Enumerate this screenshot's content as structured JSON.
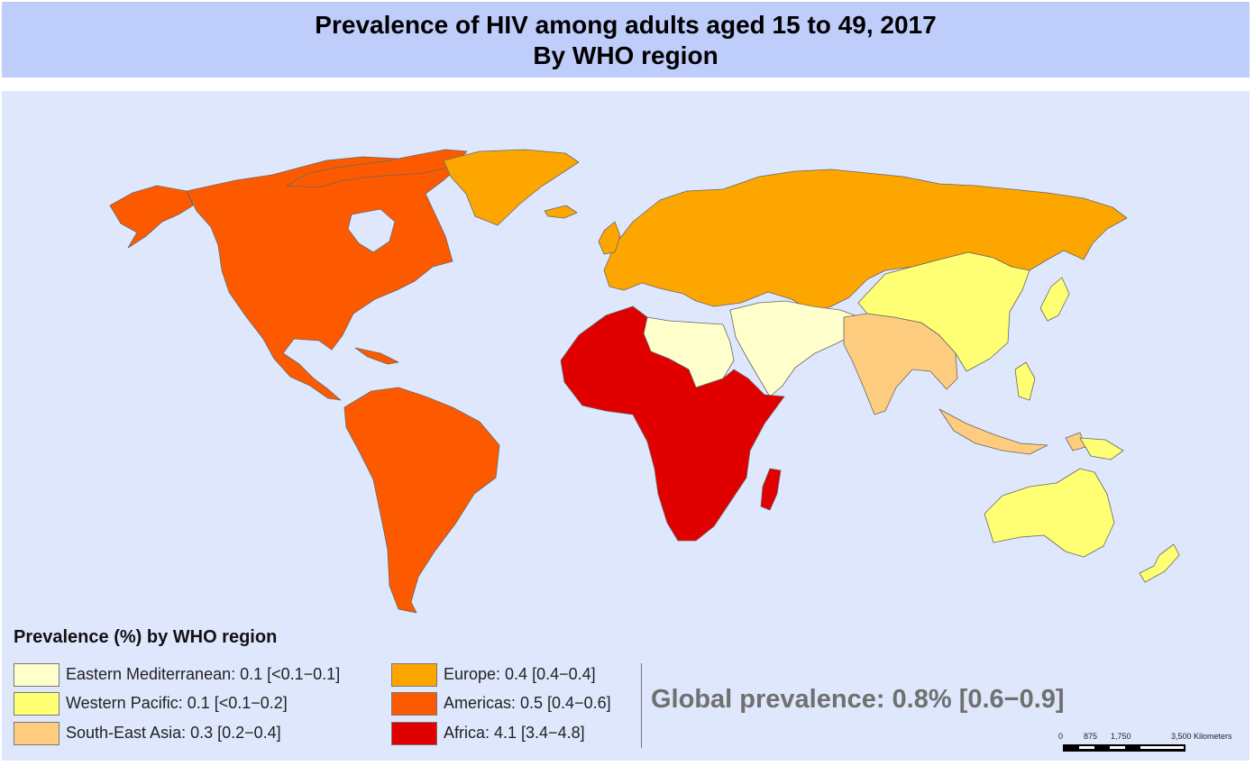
{
  "title": {
    "line1": "Prevalence of HIV among adults aged 15 to 49, 2017",
    "line2": "By WHO region"
  },
  "legend": {
    "heading": "Prevalence (%) by WHO region",
    "items": [
      {
        "label": "Eastern Mediterranean: 0.1 [<0.1−0.1]",
        "color": "#ffffcc"
      },
      {
        "label": "Western Pacific: 0.1 [<0.1−0.2]",
        "color": "#ffff73"
      },
      {
        "label": "South-East Asia: 0.3 [0.2−0.4]",
        "color": "#fecc7f"
      },
      {
        "label": "Europe: 0.4 [0.4−0.4]",
        "color": "#fea600"
      },
      {
        "label": "Americas: 0.5 [0.4−0.6]",
        "color": "#fd5a00"
      },
      {
        "label": "Africa: 4.1 [3.4−4.8]",
        "color": "#e00000"
      }
    ]
  },
  "global_prevalence": "Global prevalence: 0.8%  [0.6−0.9]",
  "scale_bar": {
    "ticks": [
      "0",
      "875",
      "1,750",
      "3,500 Kilometers"
    ]
  },
  "colors": {
    "ocean": "#dfe7fd",
    "title_band": "#bfcdfb",
    "border": "#666666"
  }
}
